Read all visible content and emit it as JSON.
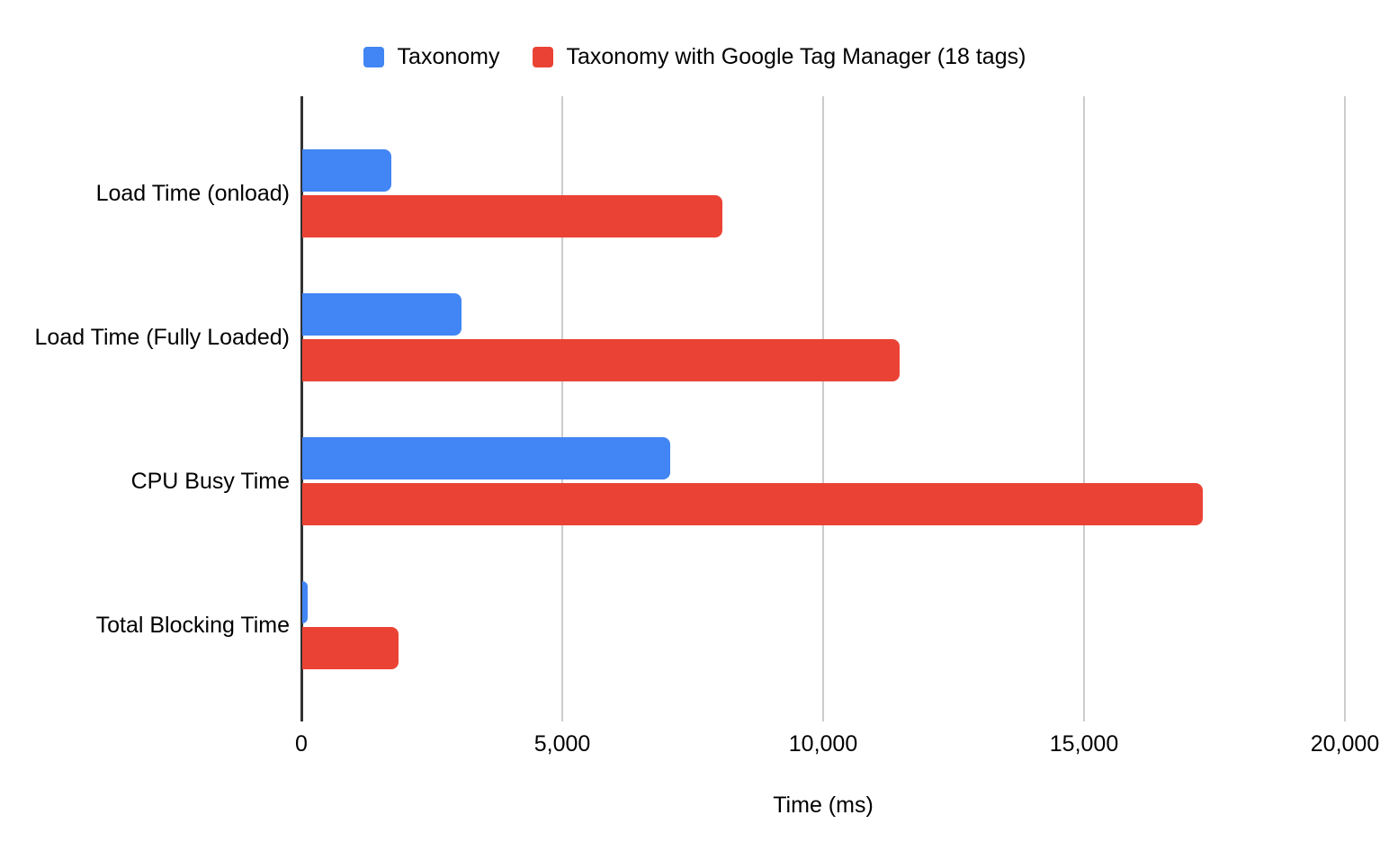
{
  "chart_data": {
    "type": "bar",
    "orientation": "horizontal",
    "title": "",
    "xlabel": "Time (ms)",
    "categories": [
      "Load Time (onload)",
      "Load Time (Fully Loaded)",
      "CPU Busy Time",
      "Total Blocking Time"
    ],
    "series": [
      {
        "name": "Taxonomy",
        "color": "#4285F4",
        "values": [
          1700,
          3050,
          7050,
          100
        ]
      },
      {
        "name": "Taxonomy with Google Tag Manager (18 tags)",
        "color": "#EA4335",
        "values": [
          8050,
          11450,
          17250,
          1850
        ]
      }
    ],
    "xlim": [
      0,
      20000
    ],
    "xticks": [
      0,
      5000,
      10000,
      15000,
      20000
    ],
    "xtick_labels": [
      "0",
      "5,000",
      "10,000",
      "15,000",
      "20,000"
    ],
    "grid": true,
    "legend_position": "top"
  },
  "colors": {
    "background": "#ffffff",
    "axis": "#333333",
    "gridline": "#cccccc",
    "text": "#000000"
  }
}
